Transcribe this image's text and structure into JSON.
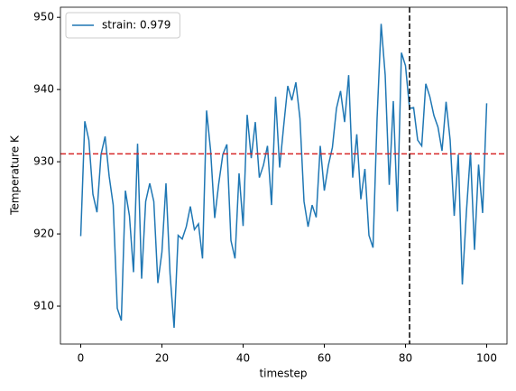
{
  "chart_data": {
    "type": "line",
    "xlabel": "timestep",
    "ylabel": "Temperature K",
    "x": [
      0,
      1,
      2,
      3,
      4,
      5,
      6,
      7,
      8,
      9,
      10,
      11,
      12,
      13,
      14,
      15,
      16,
      17,
      18,
      19,
      20,
      21,
      22,
      23,
      24,
      25,
      26,
      27,
      28,
      29,
      30,
      31,
      32,
      33,
      34,
      35,
      36,
      37,
      38,
      39,
      40,
      41,
      42,
      43,
      44,
      45,
      46,
      47,
      48,
      49,
      50,
      51,
      52,
      53,
      54,
      55,
      56,
      57,
      58,
      59,
      60,
      61,
      62,
      63,
      64,
      65,
      66,
      67,
      68,
      69,
      70,
      71,
      72,
      73,
      74,
      75,
      76,
      77,
      78,
      79,
      80,
      81,
      82,
      83,
      84,
      85,
      86,
      87,
      88,
      89,
      90,
      91,
      92,
      93,
      94,
      95,
      96,
      97,
      98,
      99,
      100
    ],
    "series": [
      {
        "name": "strain: 0.979",
        "color": "#1f77b4",
        "values": [
          919.7,
          935.6,
          933,
          925.5,
          923,
          931,
          933.5,
          928,
          924,
          909.7,
          908,
          926,
          922.5,
          914.7,
          932.5,
          913.8,
          924.5,
          927,
          924.5,
          913.2,
          917.5,
          927,
          914.5,
          907,
          919.8,
          919.3,
          921,
          923.8,
          920.6,
          921.4,
          916.6,
          937.1,
          931.5,
          922.2,
          927,
          931,
          932.4,
          919.1,
          916.6,
          928.4,
          921.1,
          936.5,
          930.5,
          935.5,
          927.8,
          929.5,
          932.2,
          924,
          939,
          929.2,
          935,
          940.5,
          938.5,
          941,
          936,
          924.5,
          921,
          924,
          922.3,
          932.2,
          926,
          929.5,
          932,
          937.4,
          939.8,
          935.5,
          942,
          927.8,
          933.8,
          924.8,
          929,
          919.8,
          918.1,
          936,
          949.1,
          942,
          926.8,
          938.4,
          923.1,
          945.1,
          943.3,
          937.4,
          937.5,
          933,
          932.2,
          940.8,
          939,
          936.4,
          934.8,
          931.5,
          938.3,
          933,
          922.5,
          931,
          913,
          923,
          931.3,
          917.8,
          929.6,
          922.9,
          938.1
        ]
      }
    ],
    "hline": {
      "value": 931.1,
      "color": "#d62728"
    },
    "vline": {
      "value": 81,
      "color": "#000000"
    },
    "xlim": [
      -5,
      105
    ],
    "ylim": [
      904.75,
      951.4
    ],
    "xticks": [
      0,
      20,
      40,
      60,
      80,
      100
    ],
    "yticks": [
      910,
      920,
      930,
      940,
      950
    ],
    "legend": "upper-left"
  }
}
